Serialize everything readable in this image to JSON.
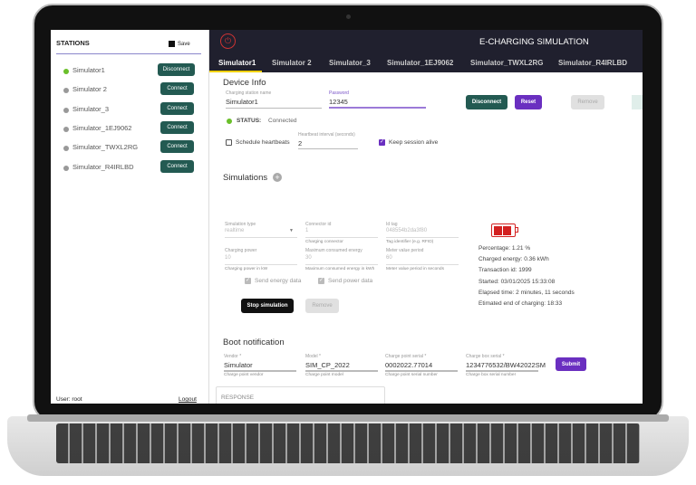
{
  "sidebar": {
    "title": "STATIONS",
    "save_label": "Save",
    "stations": [
      {
        "name": "Simulator1",
        "button": "Disconnect",
        "connected": true
      },
      {
        "name": "Simulator 2",
        "button": "Connect",
        "connected": false
      },
      {
        "name": "Simulator_3",
        "button": "Connect",
        "connected": false
      },
      {
        "name": "Simulator_1EJ9062",
        "button": "Connect",
        "connected": false
      },
      {
        "name": "Simulator_TWXL2RG",
        "button": "Connect",
        "connected": false
      },
      {
        "name": "Simulator_R4IRLBD",
        "button": "Connect",
        "connected": false
      }
    ],
    "user": "User: root",
    "logout": "Logout"
  },
  "header": {
    "title": "E-CHARGING SIMULATION"
  },
  "tabs": [
    "Simulator1",
    "Simulator 2",
    "Simulator_3",
    "Simulator_1EJ9062",
    "Simulator_TWXL2RG",
    "Simulator_R4IRLBD"
  ],
  "device": {
    "title": "Device Info",
    "name_label": "Charging station name",
    "name_value": "Simulator1",
    "password_label": "Password",
    "password_value": "12345",
    "disconnect": "Disconnect",
    "reset": "Reset",
    "remove": "Remove",
    "status_label": "STATUS:",
    "status_value": "Connected",
    "heartbeats_label": "Schedule heartbeats",
    "heartbeat_interval_label": "Heartbeat interval (seconds)",
    "heartbeat_interval_value": "2",
    "keep_alive_label": "Keep session alive"
  },
  "simulations": {
    "title": "Simulations",
    "type_label": "Simulation type",
    "type_value": "realtime",
    "connector_label": "Connector id",
    "connector_value": "1",
    "connector_hint": "Charging connector",
    "idtag_label": "Id tag",
    "idtag_value": "048554b2da3f80",
    "idtag_hint": "Tag identifier (e.g. RFID)",
    "power_label": "Charging power",
    "power_value": "10",
    "power_hint": "Charging power in kW",
    "energy_label": "Maximum consumed energy",
    "energy_value": "30",
    "energy_hint": "Maximum consumed energy in kWh",
    "meter_label": "Meter value period",
    "meter_value": "60",
    "meter_hint": "Meter value period in seconds",
    "send_energy": "Send energy data",
    "send_power": "Send power data",
    "stop": "Stop simulation",
    "remove": "Remove",
    "battery_percent": 1.21,
    "info": [
      "Percentage:   1.21 %",
      "Charged energy:   0.36 kWh",
      "Transaction id:   1999",
      "Started:   03/01/2025 15:33:08",
      "Elapsed time:   2 minutes, 11 seconds",
      "Etimated end of charging:   18:33"
    ]
  },
  "boot": {
    "title": "Boot notification",
    "vendor_label": "Vendor *",
    "vendor_value": "Simulator",
    "vendor_hint": "Charge point vendor",
    "model_label": "Model *",
    "model_value": "SIM_CP_2022",
    "model_hint": "Charge point model",
    "cps_label": "Charge point serial *",
    "cps_value": "0002022.77014",
    "cps_hint": "Charge point serial number",
    "cbs_label": "Charge box serial *",
    "cbs_value": "1234776532/BW42022SM",
    "cbs_hint": "Charge box serial number",
    "submit": "Submit",
    "response_placeholder": "RESPONSE"
  },
  "colors": {
    "teal": "#235a52",
    "purple": "#6a2fc0",
    "header": "#20202e",
    "connected": "#6abf2a",
    "battery": "#d32020"
  }
}
